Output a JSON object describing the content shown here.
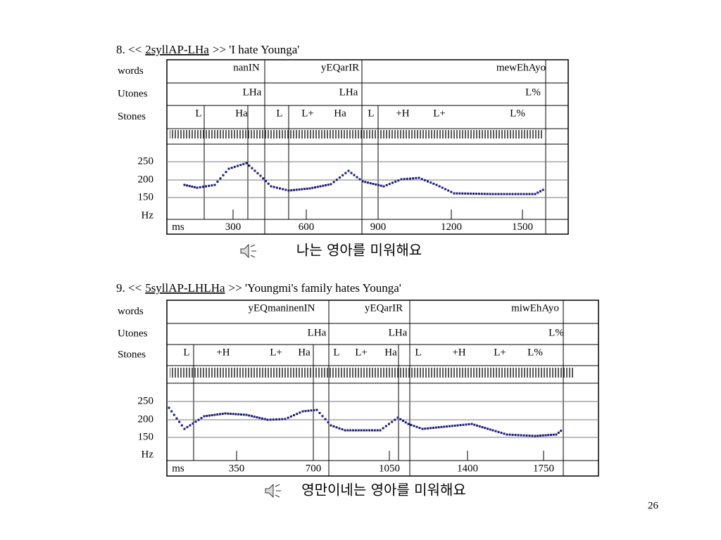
{
  "panels": [
    {
      "number": "8. <<",
      "tag": "2syllAP-LHa",
      "gloss": ">> 'I hate Younga'",
      "tiers": [
        "words",
        "Utones",
        "Stones"
      ],
      "words": [
        "nanIN",
        "yEQarIR",
        "mewEhAyo"
      ],
      "utones": [
        "LHa",
        "LHa",
        "L%"
      ],
      "stones": [
        "L",
        "Ha",
        "L",
        "L+",
        "Ha",
        "L",
        "+H",
        "L+",
        "L%"
      ],
      "y_labels": [
        250,
        200,
        150,
        "Hz"
      ],
      "x_unit": "ms",
      "x_labels": [
        300,
        600,
        900,
        1200,
        1500
      ],
      "caption": "나는 영아를 미워해요"
    },
    {
      "number": "9. <<",
      "tag": "5syllAP-LHLHa",
      "gloss": ">> 'Youngmi's family hates Younga'",
      "tiers": [
        "words",
        "Utones",
        "Stones"
      ],
      "words": [
        "yEQmaninenIN",
        "yEQarIR",
        "miwEhAyo"
      ],
      "utones": [
        "LHa",
        "LHa",
        "L%"
      ],
      "stones": [
        "L",
        "+H",
        "L+",
        "Ha",
        "L",
        "L+",
        "Ha",
        "L",
        "+H",
        "L+",
        "L%"
      ],
      "y_labels": [
        250,
        200,
        150,
        "Hz"
      ],
      "x_unit": "ms",
      "x_labels": [
        350,
        700,
        1050,
        1400,
        1750
      ],
      "caption": "영만이네는 영아를 미워해요"
    }
  ],
  "page_number": "26"
}
